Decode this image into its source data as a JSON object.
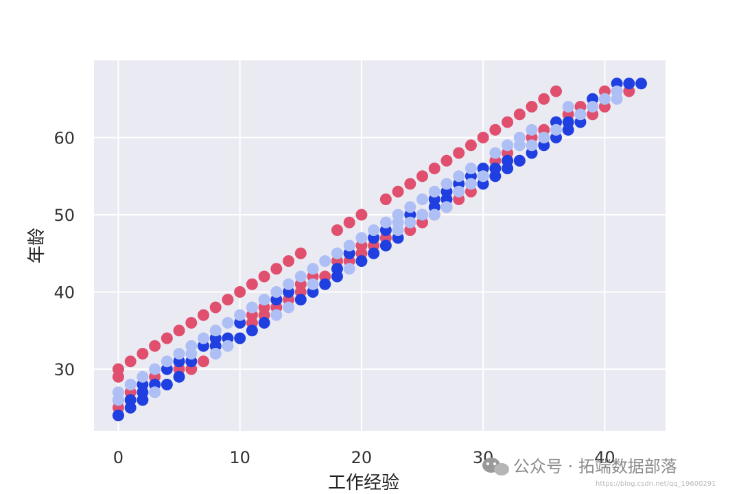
{
  "chart_data": {
    "type": "scatter",
    "xlabel": "工作经验",
    "ylabel": "年龄",
    "xlim": [
      -2,
      45
    ],
    "ylim": [
      22,
      70
    ],
    "xticks": [
      0,
      10,
      20,
      30,
      40
    ],
    "yticks": [
      30,
      40,
      50,
      60
    ],
    "grid": true,
    "colors": [
      "#e0506e",
      "#1f3fe0",
      "#aebff5"
    ],
    "series": [
      {
        "color": "#e0506e",
        "points": [
          [
            0,
            30
          ],
          [
            0,
            29
          ],
          [
            0,
            25
          ],
          [
            0,
            24
          ],
          [
            1,
            31
          ],
          [
            1,
            27
          ],
          [
            2,
            32
          ],
          [
            3,
            33
          ],
          [
            3,
            29
          ],
          [
            4,
            34
          ],
          [
            5,
            35
          ],
          [
            5,
            30
          ],
          [
            6,
            36
          ],
          [
            6,
            30
          ],
          [
            7,
            37
          ],
          [
            7,
            31
          ],
          [
            8,
            38
          ],
          [
            9,
            39
          ],
          [
            10,
            40
          ],
          [
            11,
            41
          ],
          [
            11,
            37
          ],
          [
            11,
            36
          ],
          [
            12,
            42
          ],
          [
            12,
            38
          ],
          [
            12,
            37
          ],
          [
            13,
            43
          ],
          [
            13,
            39
          ],
          [
            13,
            38
          ],
          [
            14,
            44
          ],
          [
            14,
            39
          ],
          [
            15,
            45
          ],
          [
            15,
            41
          ],
          [
            15,
            40
          ],
          [
            16,
            42
          ],
          [
            17,
            42
          ],
          [
            18,
            48
          ],
          [
            18,
            44
          ],
          [
            19,
            49
          ],
          [
            19,
            45
          ],
          [
            19,
            44
          ],
          [
            20,
            50
          ],
          [
            20,
            46
          ],
          [
            20,
            45
          ],
          [
            21,
            46
          ],
          [
            22,
            52
          ],
          [
            22,
            47
          ],
          [
            23,
            53
          ],
          [
            24,
            54
          ],
          [
            24,
            48
          ],
          [
            25,
            55
          ],
          [
            25,
            49
          ],
          [
            26,
            56
          ],
          [
            26,
            50
          ],
          [
            27,
            57
          ],
          [
            27,
            51
          ],
          [
            28,
            58
          ],
          [
            28,
            52
          ],
          [
            29,
            59
          ],
          [
            29,
            53
          ],
          [
            30,
            60
          ],
          [
            30,
            55
          ],
          [
            31,
            61
          ],
          [
            31,
            57
          ],
          [
            32,
            62
          ],
          [
            32,
            58
          ],
          [
            33,
            63
          ],
          [
            33,
            57
          ],
          [
            34,
            64
          ],
          [
            34,
            60
          ],
          [
            35,
            65
          ],
          [
            35,
            61
          ],
          [
            36,
            66
          ],
          [
            37,
            63
          ],
          [
            38,
            64
          ],
          [
            39,
            63
          ],
          [
            40,
            66
          ],
          [
            40,
            64
          ],
          [
            42,
            66
          ]
        ]
      },
      {
        "color": "#1f3fe0",
        "points": [
          [
            0,
            26
          ],
          [
            0,
            24
          ],
          [
            1,
            26
          ],
          [
            1,
            25
          ],
          [
            2,
            28
          ],
          [
            2,
            27
          ],
          [
            2,
            26
          ],
          [
            3,
            28
          ],
          [
            4,
            30
          ],
          [
            4,
            28
          ],
          [
            5,
            31
          ],
          [
            5,
            29
          ],
          [
            6,
            31
          ],
          [
            7,
            33
          ],
          [
            8,
            34
          ],
          [
            8,
            33
          ],
          [
            9,
            34
          ],
          [
            10,
            36
          ],
          [
            10,
            34
          ],
          [
            11,
            35
          ],
          [
            12,
            36
          ],
          [
            13,
            39
          ],
          [
            14,
            40
          ],
          [
            15,
            39
          ],
          [
            16,
            40
          ],
          [
            17,
            41
          ],
          [
            18,
            43
          ],
          [
            18,
            42
          ],
          [
            19,
            45
          ],
          [
            20,
            44
          ],
          [
            21,
            47
          ],
          [
            21,
            45
          ],
          [
            22,
            48
          ],
          [
            22,
            46
          ],
          [
            23,
            47
          ],
          [
            24,
            50
          ],
          [
            25,
            50
          ],
          [
            26,
            52
          ],
          [
            26,
            51
          ],
          [
            27,
            53
          ],
          [
            27,
            52
          ],
          [
            28,
            54
          ],
          [
            29,
            55
          ],
          [
            30,
            56
          ],
          [
            30,
            54
          ],
          [
            31,
            56
          ],
          [
            31,
            55
          ],
          [
            32,
            57
          ],
          [
            32,
            56
          ],
          [
            33,
            57
          ],
          [
            34,
            58
          ],
          [
            35,
            59
          ],
          [
            36,
            62
          ],
          [
            36,
            60
          ],
          [
            37,
            62
          ],
          [
            37,
            61
          ],
          [
            38,
            62
          ],
          [
            39,
            65
          ],
          [
            41,
            67
          ],
          [
            42,
            67
          ],
          [
            43,
            67
          ]
        ]
      },
      {
        "color": "#aebff5",
        "points": [
          [
            0,
            27
          ],
          [
            0,
            26
          ],
          [
            1,
            28
          ],
          [
            2,
            29
          ],
          [
            3,
            30
          ],
          [
            3,
            27
          ],
          [
            4,
            31
          ],
          [
            5,
            32
          ],
          [
            6,
            33
          ],
          [
            6,
            32
          ],
          [
            7,
            34
          ],
          [
            8,
            35
          ],
          [
            8,
            32
          ],
          [
            9,
            36
          ],
          [
            9,
            33
          ],
          [
            10,
            37
          ],
          [
            11,
            38
          ],
          [
            12,
            39
          ],
          [
            13,
            40
          ],
          [
            13,
            37
          ],
          [
            14,
            41
          ],
          [
            14,
            38
          ],
          [
            15,
            42
          ],
          [
            16,
            43
          ],
          [
            16,
            41
          ],
          [
            17,
            44
          ],
          [
            18,
            45
          ],
          [
            19,
            46
          ],
          [
            19,
            43
          ],
          [
            20,
            47
          ],
          [
            21,
            48
          ],
          [
            22,
            49
          ],
          [
            23,
            50
          ],
          [
            23,
            49
          ],
          [
            23,
            48
          ],
          [
            24,
            51
          ],
          [
            24,
            49
          ],
          [
            25,
            52
          ],
          [
            25,
            50
          ],
          [
            26,
            53
          ],
          [
            26,
            50
          ],
          [
            27,
            54
          ],
          [
            27,
            51
          ],
          [
            28,
            55
          ],
          [
            28,
            53
          ],
          [
            29,
            56
          ],
          [
            29,
            54
          ],
          [
            30,
            55
          ],
          [
            31,
            58
          ],
          [
            32,
            59
          ],
          [
            33,
            60
          ],
          [
            33,
            59
          ],
          [
            34,
            61
          ],
          [
            34,
            59
          ],
          [
            35,
            60
          ],
          [
            36,
            61
          ],
          [
            37,
            64
          ],
          [
            38,
            63
          ],
          [
            39,
            64
          ],
          [
            40,
            65
          ],
          [
            41,
            66
          ],
          [
            41,
            65
          ]
        ]
      }
    ]
  },
  "watermark": {
    "label": "公众号 · 拓端数据部落",
    "url": "https://blog.csdn.net/qq_19600291"
  }
}
